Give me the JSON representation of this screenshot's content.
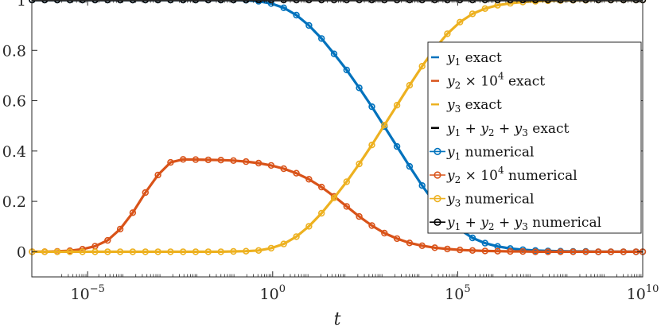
{
  "chart_data": {
    "type": "line",
    "xscale": "log",
    "xlabel": "t",
    "ylabel": "",
    "title": "",
    "xlim": [
      3.1e-07,
      10000000000.0
    ],
    "ylim": [
      -0.1,
      1.0
    ],
    "xticks": [
      {
        "value": 1e-05,
        "base": "10",
        "exp": "−5"
      },
      {
        "value": 1,
        "base": "10",
        "exp": "0"
      },
      {
        "value": 100000.0,
        "base": "10",
        "exp": "5"
      },
      {
        "value": 10000000000.0,
        "base": "10",
        "exp": "10"
      }
    ],
    "yticks": [
      "0",
      "0.2",
      "0.4",
      "0.6",
      "0.8",
      "1"
    ],
    "grid": false,
    "legend_position": "right",
    "colors": {
      "y1": "#0072BD",
      "y2": "#D95319",
      "y3": "#EDB120",
      "sum": "#000000"
    },
    "legend": [
      {
        "key": "y1",
        "style": "line",
        "parts": [
          {
            "t": "y",
            "it": true
          },
          {
            "t": "1",
            "sub": true
          },
          {
            "t": " exact"
          }
        ]
      },
      {
        "key": "y2",
        "style": "line",
        "parts": [
          {
            "t": "y",
            "it": true
          },
          {
            "t": "2",
            "sub": true
          },
          {
            "t": " × 10"
          },
          {
            "t": "4",
            "sup": true
          },
          {
            "t": " exact"
          }
        ]
      },
      {
        "key": "y3",
        "style": "line",
        "parts": [
          {
            "t": "y",
            "it": true
          },
          {
            "t": "3",
            "sub": true
          },
          {
            "t": " exact"
          }
        ]
      },
      {
        "key": "sum",
        "style": "line",
        "parts": [
          {
            "t": "y",
            "it": true
          },
          {
            "t": "1",
            "sub": true
          },
          {
            "t": " + "
          },
          {
            "t": "y",
            "it": true
          },
          {
            "t": "2",
            "sub": true
          },
          {
            "t": " + "
          },
          {
            "t": "y",
            "it": true
          },
          {
            "t": "3",
            "sub": true
          },
          {
            "t": " exact"
          }
        ]
      },
      {
        "key": "y1",
        "style": "marker",
        "parts": [
          {
            "t": "y",
            "it": true
          },
          {
            "t": "1",
            "sub": true
          },
          {
            "t": " numerical"
          }
        ]
      },
      {
        "key": "y2",
        "style": "marker",
        "parts": [
          {
            "t": "y",
            "it": true
          },
          {
            "t": "2",
            "sub": true
          },
          {
            "t": " × 10"
          },
          {
            "t": "4",
            "sup": true
          },
          {
            "t": " numerical"
          }
        ]
      },
      {
        "key": "y3",
        "style": "marker",
        "parts": [
          {
            "t": "y",
            "it": true
          },
          {
            "t": "3",
            "sub": true
          },
          {
            "t": " numerical"
          }
        ]
      },
      {
        "key": "sum",
        "style": "marker",
        "parts": [
          {
            "t": "y",
            "it": true
          },
          {
            "t": "1",
            "sub": true
          },
          {
            "t": " + "
          },
          {
            "t": "y",
            "it": true
          },
          {
            "t": "2",
            "sub": true
          },
          {
            "t": " + "
          },
          {
            "t": "y",
            "it": true
          },
          {
            "t": "3",
            "sub": true
          },
          {
            "t": " numerical"
          }
        ]
      }
    ],
    "log10_x": [
      -6.5,
      -6.16,
      -5.82,
      -5.48,
      -5.14,
      -4.8,
      -4.46,
      -4.12,
      -3.78,
      -3.44,
      -3.1,
      -2.76,
      -2.42,
      -2.08,
      -1.74,
      -1.4,
      -1.06,
      -0.72,
      -0.38,
      -0.04,
      0.3,
      0.64,
      0.98,
      1.32,
      1.66,
      2.0,
      2.34,
      2.68,
      3.02,
      3.36,
      3.7,
      4.04,
      4.38,
      4.72,
      5.06,
      5.4,
      5.74,
      6.08,
      6.42,
      6.76,
      7.1,
      7.44,
      7.78,
      8.12,
      8.46,
      8.8,
      9.14,
      9.48,
      9.82,
      10.0
    ],
    "series": [
      {
        "key": "y1",
        "values": [
          1,
          1,
          1,
          1,
          1,
          1,
          1,
          1,
          1,
          1,
          1,
          1,
          1,
          1,
          1,
          1,
          1,
          0.999,
          0.995,
          0.986,
          0.969,
          0.94,
          0.899,
          0.847,
          0.786,
          0.722,
          0.651,
          0.576,
          0.497,
          0.418,
          0.339,
          0.263,
          0.193,
          0.134,
          0.088,
          0.055,
          0.034,
          0.021,
          0.013,
          0.008,
          0.005,
          0.003,
          0.002,
          0.001,
          0.001,
          0,
          0,
          0,
          0,
          0
        ]
      },
      {
        "key": "y2",
        "values": [
          0,
          0.0003,
          0.0015,
          0.004,
          0.01,
          0.022,
          0.045,
          0.09,
          0.155,
          0.235,
          0.305,
          0.355,
          0.367,
          0.366,
          0.365,
          0.364,
          0.362,
          0.358,
          0.352,
          0.343,
          0.33,
          0.312,
          0.288,
          0.257,
          0.22,
          0.18,
          0.14,
          0.104,
          0.074,
          0.052,
          0.035,
          0.024,
          0.016,
          0.011,
          0.007,
          0.005,
          0.003,
          0.002,
          0.001,
          0.001,
          0,
          0,
          0,
          0,
          0,
          0,
          0,
          0,
          0,
          0
        ]
      },
      {
        "key": "y3",
        "values": [
          0,
          0,
          0,
          0,
          0,
          0,
          0,
          0,
          0,
          0,
          0,
          0,
          0,
          0,
          0,
          0,
          0.001,
          0.002,
          0.005,
          0.014,
          0.031,
          0.06,
          0.101,
          0.153,
          0.214,
          0.278,
          0.349,
          0.424,
          0.503,
          0.582,
          0.661,
          0.737,
          0.807,
          0.866,
          0.912,
          0.945,
          0.966,
          0.979,
          0.987,
          0.992,
          0.995,
          0.997,
          0.998,
          0.999,
          0.999,
          1,
          1,
          1,
          1,
          1
        ]
      },
      {
        "key": "sum",
        "values": [
          1,
          1,
          1,
          1,
          1,
          1,
          1,
          1,
          1,
          1,
          1,
          1,
          1,
          1,
          1,
          1,
          1,
          1,
          1,
          1,
          1,
          1,
          1,
          1,
          1,
          1,
          1,
          1,
          1,
          1,
          1,
          1,
          1,
          1,
          1,
          1,
          1,
          1,
          1,
          1,
          1,
          1,
          1,
          1,
          1,
          1,
          1,
          1,
          1,
          1
        ]
      }
    ]
  }
}
